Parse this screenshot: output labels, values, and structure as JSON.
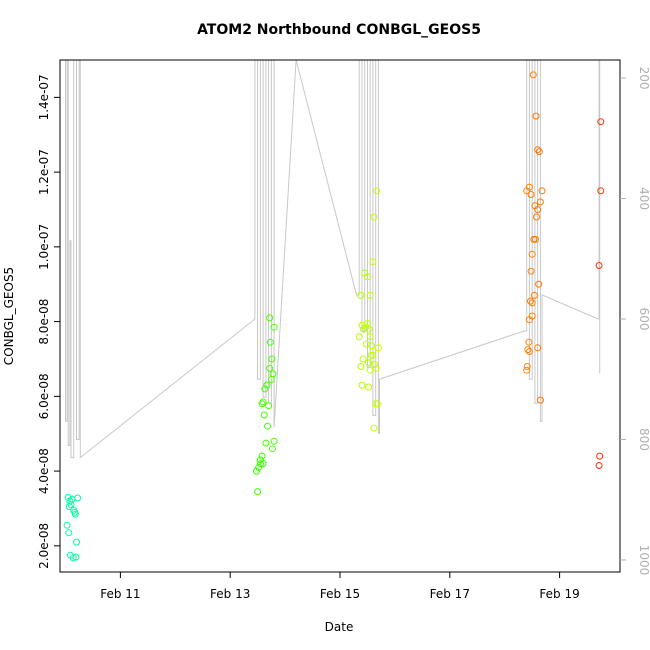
{
  "chart_data": {
    "type": "scatter",
    "title": "ATOM2 Northbound CONBGL_GEOS5",
    "xlabel": "Date",
    "ylabel": "CONBGL_GEOS5",
    "x_ticks": [
      "Feb 11",
      "Feb 13",
      "Feb 15",
      "Feb 17",
      "Feb 19"
    ],
    "y_ticks": [
      "2.0e-08",
      "4.0e-08",
      "6.0e-08",
      "8.0e-08",
      "1.0e-07",
      "1.2e-07",
      "1.4e-07"
    ],
    "right_ticks": [
      "200",
      "400",
      "600",
      "800",
      "1000"
    ],
    "xlim": [
      9.9,
      20.1
    ],
    "ylim": [
      1.3e-08,
      1.5e-07
    ],
    "right_lim": [
      1020,
      170
    ],
    "grid": false,
    "points": [
      {
        "x": 10.05,
        "y": 3.3e-08
      },
      {
        "x": 10.08,
        "y": 3.2e-08
      },
      {
        "x": 10.1,
        "y": 3.1e-08
      },
      {
        "x": 10.12,
        "y": 3.25e-08
      },
      {
        "x": 10.07,
        "y": 3.05e-08
      },
      {
        "x": 10.15,
        "y": 2.95e-08
      },
      {
        "x": 10.18,
        "y": 2.85e-08
      },
      {
        "x": 10.03,
        "y": 2.55e-08
      },
      {
        "x": 10.06,
        "y": 2.35e-08
      },
      {
        "x": 10.2,
        "y": 2.1e-08
      },
      {
        "x": 10.09,
        "y": 1.75e-08
      },
      {
        "x": 10.14,
        "y": 1.68e-08
      },
      {
        "x": 10.19,
        "y": 1.7e-08
      },
      {
        "x": 10.17,
        "y": 2.9e-08
      },
      {
        "x": 10.22,
        "y": 3.28e-08
      },
      {
        "x": 13.5,
        "y": 3.45e-08
      },
      {
        "x": 13.52,
        "y": 4.1e-08
      },
      {
        "x": 13.55,
        "y": 4.3e-08
      },
      {
        "x": 13.58,
        "y": 4.4e-08
      },
      {
        "x": 13.6,
        "y": 4.2e-08
      },
      {
        "x": 13.48,
        "y": 4e-08
      },
      {
        "x": 13.65,
        "y": 4.75e-08
      },
      {
        "x": 13.62,
        "y": 5.5e-08
      },
      {
        "x": 13.7,
        "y": 5.75e-08
      },
      {
        "x": 13.6,
        "y": 5.85e-08
      },
      {
        "x": 13.63,
        "y": 6.2e-08
      },
      {
        "x": 13.67,
        "y": 6.3e-08
      },
      {
        "x": 13.72,
        "y": 6.75e-08
      },
      {
        "x": 13.78,
        "y": 6.6e-08
      },
      {
        "x": 13.75,
        "y": 6.45e-08
      },
      {
        "x": 13.76,
        "y": 7e-08
      },
      {
        "x": 13.73,
        "y": 7.45e-08
      },
      {
        "x": 13.72,
        "y": 8.1e-08
      },
      {
        "x": 13.8,
        "y": 7.85e-08
      },
      {
        "x": 13.68,
        "y": 5.2e-08
      },
      {
        "x": 13.8,
        "y": 4.8e-08
      },
      {
        "x": 13.77,
        "y": 4.6e-08
      },
      {
        "x": 13.55,
        "y": 4.2e-08
      },
      {
        "x": 13.58,
        "y": 5.8e-08
      },
      {
        "x": 15.38,
        "y": 8.7e-08
      },
      {
        "x": 15.45,
        "y": 9.3e-08
      },
      {
        "x": 15.5,
        "y": 9.2e-08
      },
      {
        "x": 15.55,
        "y": 8.7e-08
      },
      {
        "x": 15.6,
        "y": 9.6e-08
      },
      {
        "x": 15.62,
        "y": 1.08e-07
      },
      {
        "x": 15.67,
        "y": 1.15e-07
      },
      {
        "x": 15.4,
        "y": 7.9e-08
      },
      {
        "x": 15.43,
        "y": 7.8e-08
      },
      {
        "x": 15.47,
        "y": 7.85e-08
      },
      {
        "x": 15.5,
        "y": 7.95e-08
      },
      {
        "x": 15.53,
        "y": 7.8e-08
      },
      {
        "x": 15.35,
        "y": 7.6e-08
      },
      {
        "x": 15.48,
        "y": 7.4e-08
      },
      {
        "x": 15.55,
        "y": 7.6e-08
      },
      {
        "x": 15.58,
        "y": 7.35e-08
      },
      {
        "x": 15.42,
        "y": 7e-08
      },
      {
        "x": 15.52,
        "y": 6.9e-08
      },
      {
        "x": 15.6,
        "y": 7.1e-08
      },
      {
        "x": 15.38,
        "y": 6.8e-08
      },
      {
        "x": 15.63,
        "y": 6.85e-08
      },
      {
        "x": 15.66,
        "y": 6.75e-08
      },
      {
        "x": 15.7,
        "y": 7.3e-08
      },
      {
        "x": 15.55,
        "y": 6.7e-08
      },
      {
        "x": 15.4,
        "y": 6.3e-08
      },
      {
        "x": 15.52,
        "y": 6.25e-08
      },
      {
        "x": 15.65,
        "y": 5.8e-08
      },
      {
        "x": 15.68,
        "y": 5.8e-08
      },
      {
        "x": 15.62,
        "y": 5.15e-08
      },
      {
        "x": 15.57,
        "y": 7.1e-08
      },
      {
        "x": 18.4,
        "y": 1.15e-07
      },
      {
        "x": 18.45,
        "y": 1.16e-07
      },
      {
        "x": 18.52,
        "y": 1.46e-07
      },
      {
        "x": 18.57,
        "y": 1.35e-07
      },
      {
        "x": 18.6,
        "y": 1.26e-07
      },
      {
        "x": 18.63,
        "y": 1.255e-07
      },
      {
        "x": 18.48,
        "y": 1.14e-07
      },
      {
        "x": 18.55,
        "y": 1.11e-07
      },
      {
        "x": 18.6,
        "y": 1.1e-07
      },
      {
        "x": 18.65,
        "y": 1.12e-07
      },
      {
        "x": 18.68,
        "y": 1.15e-07
      },
      {
        "x": 18.58,
        "y": 1.08e-07
      },
      {
        "x": 18.53,
        "y": 1.02e-07
      },
      {
        "x": 18.56,
        "y": 1.02e-07
      },
      {
        "x": 18.5,
        "y": 9.8e-08
      },
      {
        "x": 18.48,
        "y": 9.35e-08
      },
      {
        "x": 18.62,
        "y": 9e-08
      },
      {
        "x": 18.47,
        "y": 8.55e-08
      },
      {
        "x": 18.5,
        "y": 8.5e-08
      },
      {
        "x": 18.54,
        "y": 8.7e-08
      },
      {
        "x": 18.45,
        "y": 8.05e-08
      },
      {
        "x": 18.5,
        "y": 8.15e-08
      },
      {
        "x": 18.44,
        "y": 7.45e-08
      },
      {
        "x": 18.45,
        "y": 7.2e-08
      },
      {
        "x": 18.42,
        "y": 7.25e-08
      },
      {
        "x": 18.41,
        "y": 6.8e-08
      },
      {
        "x": 18.4,
        "y": 6.7e-08
      },
      {
        "x": 18.6,
        "y": 7.3e-08
      },
      {
        "x": 18.65,
        "y": 5.9e-08
      },
      {
        "x": 19.75,
        "y": 1.335e-07
      },
      {
        "x": 19.75,
        "y": 1.15e-07
      },
      {
        "x": 19.72,
        "y": 9.5e-08
      },
      {
        "x": 19.73,
        "y": 4.4e-08
      },
      {
        "x": 19.72,
        "y": 4.15e-08
      }
    ],
    "pressure_line": [
      {
        "x": 10.0,
        "y": 170
      },
      {
        "x": 10.0,
        "y": 770
      },
      {
        "x": 10.03,
        "y": 770
      },
      {
        "x": 10.03,
        "y": 170
      },
      {
        "x": 10.05,
        "y": 170
      },
      {
        "x": 10.05,
        "y": 810
      },
      {
        "x": 10.08,
        "y": 810
      },
      {
        "x": 10.08,
        "y": 470
      },
      {
        "x": 10.1,
        "y": 470
      },
      {
        "x": 10.1,
        "y": 830
      },
      {
        "x": 10.15,
        "y": 830
      },
      {
        "x": 10.15,
        "y": 170
      },
      {
        "x": 10.2,
        "y": 170
      },
      {
        "x": 10.2,
        "y": 800
      },
      {
        "x": 10.25,
        "y": 800
      },
      {
        "x": 10.25,
        "y": 170
      },
      {
        "x": 10.27,
        "y": 170
      },
      {
        "x": 10.27,
        "y": 830
      },
      {
        "x": 13.45,
        "y": 600
      },
      {
        "x": 13.45,
        "y": 170
      },
      {
        "x": 13.5,
        "y": 170
      },
      {
        "x": 13.5,
        "y": 700
      },
      {
        "x": 13.55,
        "y": 700
      },
      {
        "x": 13.55,
        "y": 170
      },
      {
        "x": 13.6,
        "y": 170
      },
      {
        "x": 13.6,
        "y": 730
      },
      {
        "x": 13.65,
        "y": 730
      },
      {
        "x": 13.65,
        "y": 170
      },
      {
        "x": 13.7,
        "y": 170
      },
      {
        "x": 13.7,
        "y": 740
      },
      {
        "x": 13.75,
        "y": 740
      },
      {
        "x": 13.75,
        "y": 170
      },
      {
        "x": 13.8,
        "y": 170
      },
      {
        "x": 13.8,
        "y": 780
      },
      {
        "x": 14.2,
        "y": 170
      },
      {
        "x": 15.3,
        "y": 560
      },
      {
        "x": 15.35,
        "y": 560
      },
      {
        "x": 15.35,
        "y": 170
      },
      {
        "x": 15.4,
        "y": 170
      },
      {
        "x": 15.4,
        "y": 620
      },
      {
        "x": 15.45,
        "y": 620
      },
      {
        "x": 15.45,
        "y": 170
      },
      {
        "x": 15.5,
        "y": 170
      },
      {
        "x": 15.5,
        "y": 680
      },
      {
        "x": 15.55,
        "y": 680
      },
      {
        "x": 15.55,
        "y": 170
      },
      {
        "x": 15.6,
        "y": 170
      },
      {
        "x": 15.6,
        "y": 760
      },
      {
        "x": 15.65,
        "y": 760
      },
      {
        "x": 15.65,
        "y": 170
      },
      {
        "x": 15.7,
        "y": 170
      },
      {
        "x": 15.7,
        "y": 790
      },
      {
        "x": 15.72,
        "y": 790
      },
      {
        "x": 15.72,
        "y": 700
      },
      {
        "x": 18.35,
        "y": 620
      },
      {
        "x": 18.4,
        "y": 620
      },
      {
        "x": 18.4,
        "y": 170
      },
      {
        "x": 18.45,
        "y": 170
      },
      {
        "x": 18.45,
        "y": 700
      },
      {
        "x": 18.5,
        "y": 700
      },
      {
        "x": 18.5,
        "y": 170
      },
      {
        "x": 18.55,
        "y": 170
      },
      {
        "x": 18.55,
        "y": 740
      },
      {
        "x": 18.6,
        "y": 740
      },
      {
        "x": 18.6,
        "y": 170
      },
      {
        "x": 18.65,
        "y": 170
      },
      {
        "x": 18.65,
        "y": 770
      },
      {
        "x": 18.68,
        "y": 770
      },
      {
        "x": 18.68,
        "y": 560
      },
      {
        "x": 19.7,
        "y": 600
      },
      {
        "x": 19.72,
        "y": 600
      },
      {
        "x": 19.72,
        "y": 170
      },
      {
        "x": 19.73,
        "y": 170
      },
      {
        "x": 19.73,
        "y": 690
      }
    ]
  }
}
